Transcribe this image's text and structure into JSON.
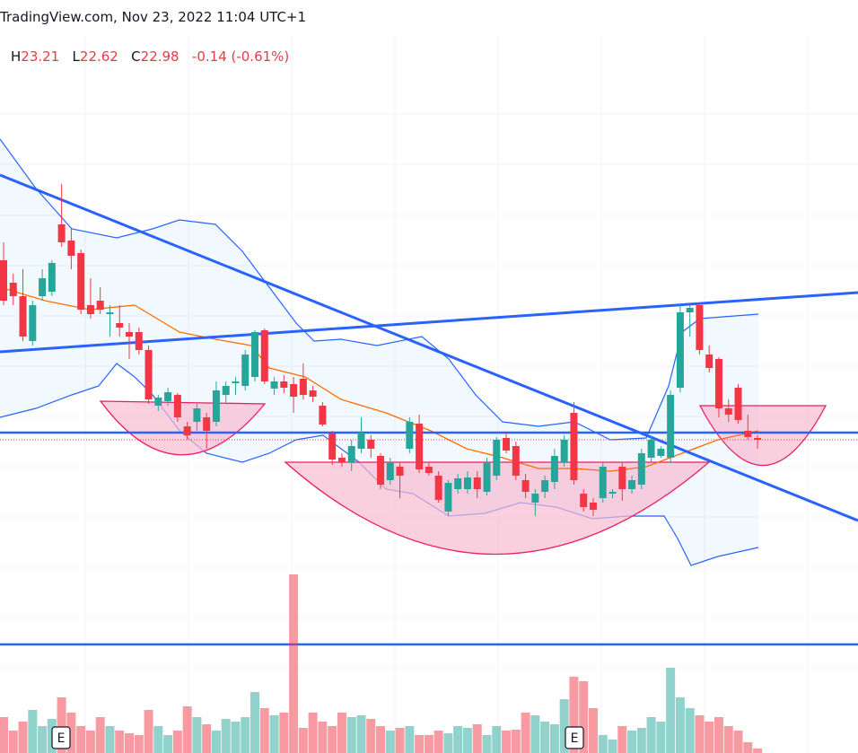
{
  "header": {
    "source": "TradingView.com, Nov 23, 2022 11:04 UTC+1",
    "high": {
      "label": "H",
      "value": "23.21"
    },
    "low": {
      "label": "L",
      "value": "22.62"
    },
    "close": {
      "label": "C",
      "value": "22.98"
    },
    "change": "-0.14 (-0.61%)"
  },
  "chart_data": {
    "type": "candlestick",
    "ylim": [
      19.46,
      27.85
    ],
    "up_color": "#26a69a",
    "down_color": "#f23645",
    "candles": [
      [
        24.95,
        25.15,
        24.45,
        24.5
      ],
      [
        24.7,
        24.8,
        24.45,
        24.55
      ],
      [
        24.55,
        24.85,
        24.05,
        24.1
      ],
      [
        24.05,
        24.5,
        24.0,
        24.45
      ],
      [
        24.55,
        24.85,
        24.5,
        24.75
      ],
      [
        24.6,
        24.95,
        24.55,
        24.92
      ],
      [
        25.35,
        25.8,
        25.1,
        25.15
      ],
      [
        25.17,
        25.3,
        24.85,
        25.0
      ],
      [
        25.03,
        25.07,
        24.35,
        24.4
      ],
      [
        24.45,
        24.75,
        24.3,
        24.35
      ],
      [
        24.5,
        24.65,
        24.35,
        24.4
      ],
      [
        24.35,
        24.45,
        24.1,
        24.37
      ],
      [
        24.25,
        24.45,
        24.1,
        24.2
      ],
      [
        24.15,
        24.25,
        23.85,
        24.1
      ],
      [
        24.15,
        24.2,
        23.9,
        23.95
      ],
      [
        23.95,
        24.0,
        23.35,
        23.4
      ],
      [
        23.33,
        23.45,
        23.27,
        23.42
      ],
      [
        23.38,
        23.53,
        23.33,
        23.48
      ],
      [
        23.45,
        23.47,
        23.15,
        23.2
      ],
      [
        23.1,
        23.15,
        22.95,
        23.0
      ],
      [
        23.15,
        23.35,
        23.05,
        23.3
      ],
      [
        23.2,
        23.25,
        22.85,
        23.05
      ],
      [
        23.15,
        23.6,
        23.1,
        23.5
      ],
      [
        23.45,
        23.6,
        23.35,
        23.55
      ],
      [
        23.58,
        23.65,
        23.45,
        23.6
      ],
      [
        23.55,
        23.95,
        23.5,
        23.9
      ],
      [
        23.65,
        24.17,
        23.6,
        24.15
      ],
      [
        24.17,
        24.19,
        23.57,
        23.6
      ],
      [
        23.52,
        23.65,
        23.45,
        23.6
      ],
      [
        23.6,
        23.67,
        23.47,
        23.53
      ],
      [
        23.57,
        23.65,
        23.25,
        23.43
      ],
      [
        23.63,
        23.8,
        23.4,
        23.45
      ],
      [
        23.5,
        23.55,
        23.37,
        23.43
      ],
      [
        23.33,
        23.37,
        23.1,
        23.12
      ],
      [
        23.02,
        23.05,
        22.67,
        22.73
      ],
      [
        22.75,
        22.8,
        22.65,
        22.7
      ],
      [
        22.7,
        22.95,
        22.6,
        22.88
      ],
      [
        22.85,
        23.2,
        22.8,
        23.03
      ],
      [
        22.95,
        23.0,
        22.75,
        22.85
      ],
      [
        22.77,
        22.8,
        22.4,
        22.45
      ],
      [
        22.5,
        22.75,
        22.45,
        22.7
      ],
      [
        22.65,
        22.7,
        22.3,
        22.55
      ],
      [
        22.85,
        23.2,
        22.8,
        23.15
      ],
      [
        23.13,
        23.23,
        22.58,
        22.62
      ],
      [
        22.65,
        22.7,
        22.55,
        22.58
      ],
      [
        22.55,
        22.6,
        22.25,
        22.28
      ],
      [
        22.15,
        22.5,
        22.1,
        22.47
      ],
      [
        22.4,
        22.57,
        22.35,
        22.52
      ],
      [
        22.4,
        22.6,
        22.35,
        22.53
      ],
      [
        22.53,
        22.6,
        22.3,
        22.4
      ],
      [
        22.37,
        22.75,
        22.33,
        22.7
      ],
      [
        22.55,
        22.98,
        22.5,
        22.95
      ],
      [
        22.97,
        23.03,
        22.8,
        22.83
      ],
      [
        22.88,
        22.93,
        22.5,
        22.55
      ],
      [
        22.5,
        22.57,
        22.3,
        22.37
      ],
      [
        22.25,
        22.4,
        22.1,
        22.35
      ],
      [
        22.37,
        22.55,
        22.3,
        22.5
      ],
      [
        22.48,
        22.85,
        22.4,
        22.77
      ],
      [
        22.7,
        23.0,
        22.65,
        22.95
      ],
      [
        23.25,
        23.37,
        22.45,
        22.5
      ],
      [
        22.35,
        22.4,
        22.15,
        22.2
      ],
      [
        22.25,
        22.3,
        22.1,
        22.17
      ],
      [
        22.3,
        22.7,
        22.25,
        22.65
      ],
      [
        22.35,
        22.4,
        22.3,
        22.37
      ],
      [
        22.65,
        22.7,
        22.27,
        22.4
      ],
      [
        22.4,
        22.55,
        22.35,
        22.5
      ],
      [
        22.45,
        22.85,
        22.4,
        22.8
      ],
      [
        22.75,
        23.0,
        22.7,
        22.95
      ],
      [
        22.77,
        22.88,
        22.75,
        22.85
      ],
      [
        22.75,
        23.5,
        22.7,
        23.45
      ],
      [
        23.53,
        24.45,
        23.48,
        24.37
      ],
      [
        24.37,
        24.45,
        24.1,
        24.42
      ],
      [
        24.45,
        24.48,
        23.9,
        23.95
      ],
      [
        23.9,
        24.0,
        23.7,
        23.75
      ],
      [
        23.85,
        23.87,
        23.2,
        23.3
      ],
      [
        23.3,
        23.4,
        23.15,
        23.23
      ],
      [
        23.53,
        23.57,
        23.13,
        23.17
      ],
      [
        23.05,
        23.23,
        22.95,
        22.98
      ],
      [
        22.97,
        23.0,
        22.85,
        22.95
      ]
    ],
    "volume_lim": [
      0,
      200
    ],
    "volumes": [
      40,
      25,
      35,
      48,
      30,
      38,
      62,
      45,
      30,
      25,
      40,
      30,
      25,
      22,
      20,
      48,
      30,
      20,
      25,
      52,
      40,
      32,
      25,
      38,
      35,
      40,
      68,
      50,
      42,
      45,
      199,
      28,
      45,
      35,
      30,
      45,
      40,
      42,
      38,
      30,
      25,
      28,
      30,
      20,
      20,
      25,
      22,
      30,
      28,
      32,
      20,
      30,
      25,
      26,
      45,
      42,
      35,
      32,
      60,
      85,
      80,
      50,
      20,
      15,
      30,
      25,
      28,
      40,
      35,
      95,
      62,
      50,
      42,
      35,
      40,
      30,
      25,
      12,
      5
    ]
  },
  "events": [
    "E",
    "E"
  ]
}
